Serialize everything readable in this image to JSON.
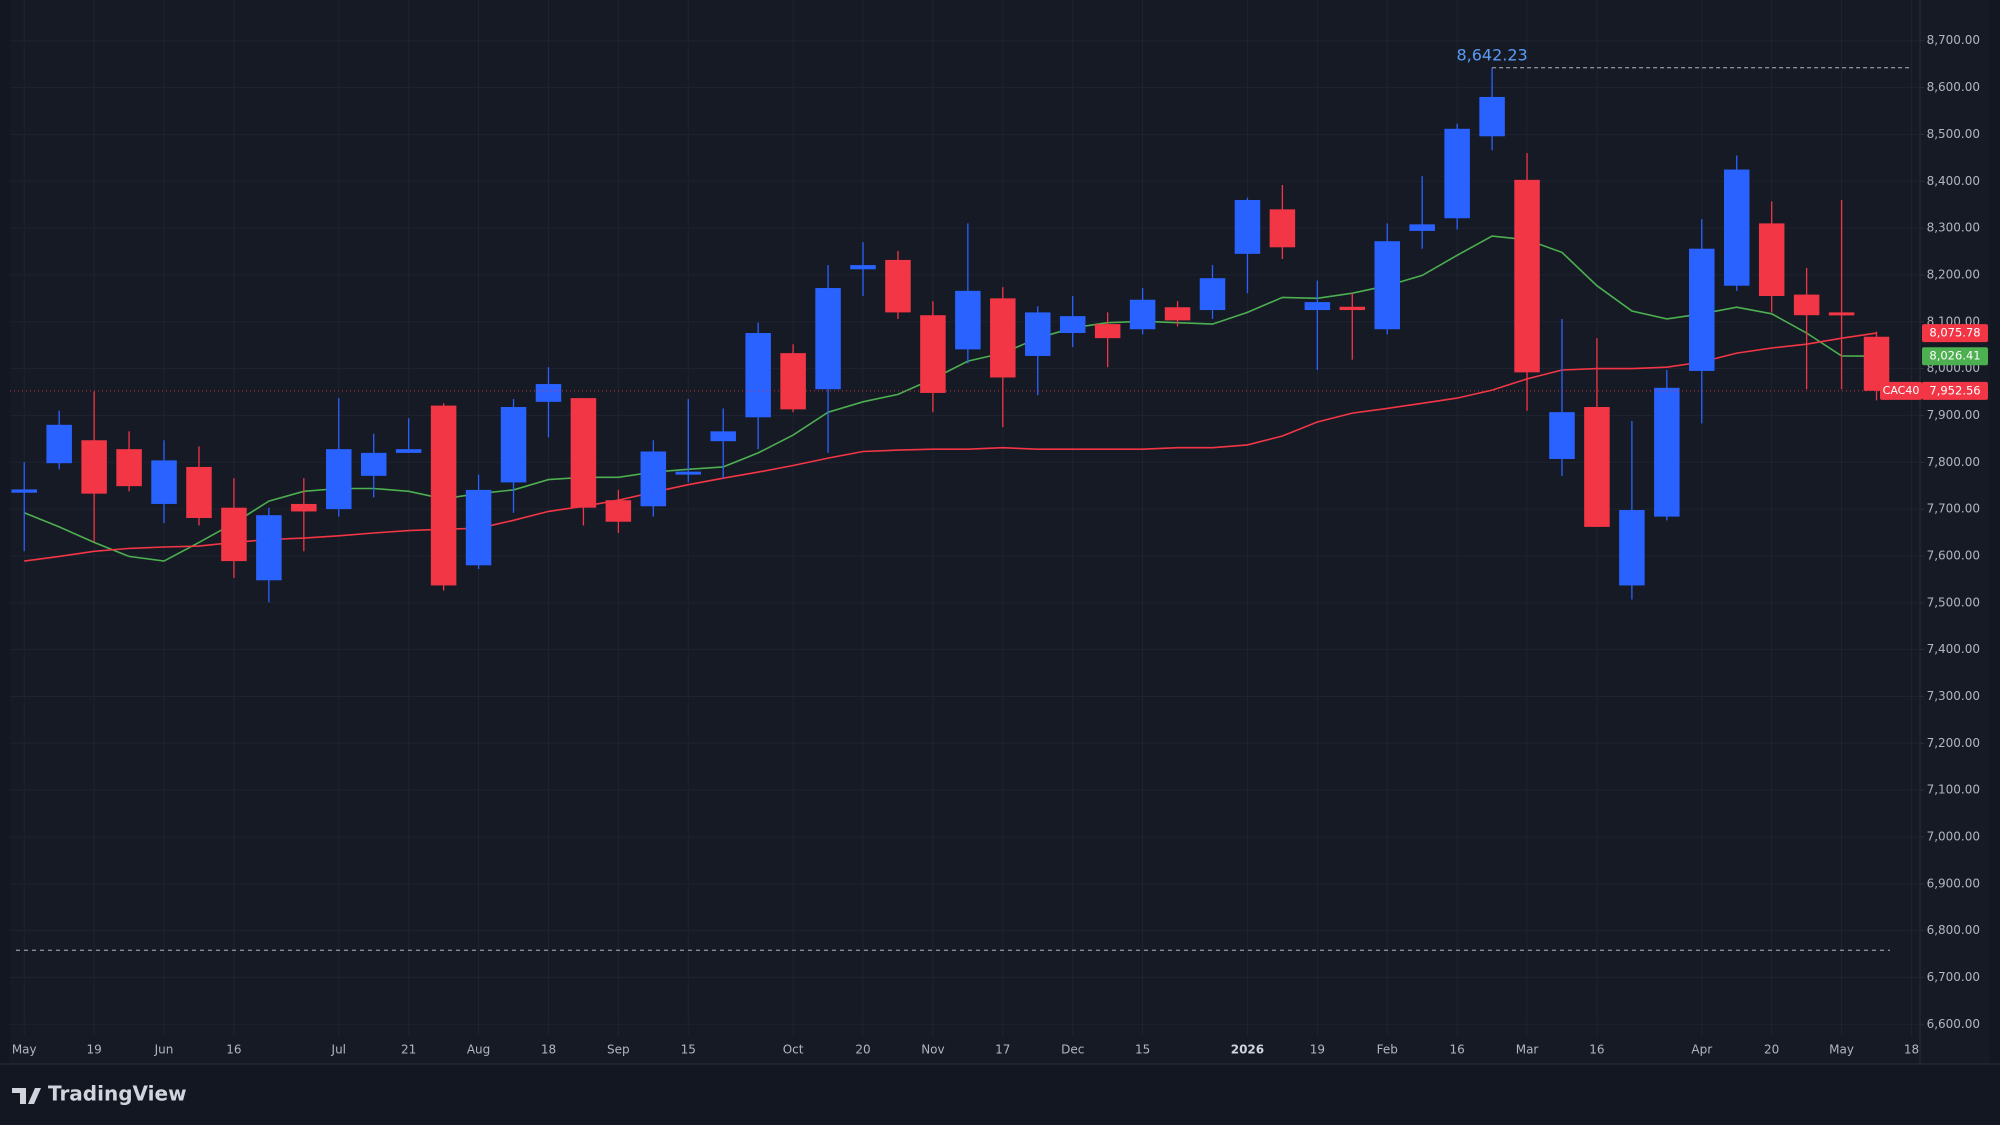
{
  "brand": "TradingView",
  "chart_data": {
    "type": "candlestick",
    "symbol": "CAC40",
    "last_label": "7,952.56",
    "high_label": "8,642.23",
    "up_color": "#2962ff",
    "down_color": "#f23645",
    "categories": [
      "May",
      null,
      "19",
      null,
      "Jun",
      null,
      "16",
      null,
      null,
      "Jul",
      null,
      "21",
      null,
      "Aug",
      null,
      "18",
      null,
      "Sep",
      null,
      "15",
      null,
      null,
      "Oct",
      null,
      "20",
      null,
      "Nov",
      null,
      "17",
      null,
      "Dec",
      null,
      "15",
      null,
      null,
      "2026",
      null,
      "19",
      null,
      "Feb",
      null,
      "16",
      null,
      "Mar",
      null,
      "16",
      null,
      null,
      "Apr",
      null,
      "20",
      null,
      "May",
      null,
      "18"
    ],
    "open": [
      7735,
      7798,
      7847,
      7828,
      7711,
      7790,
      7703,
      7548,
      7711,
      7700,
      7771,
      7820,
      7921,
      7580,
      7757,
      7929,
      7937,
      7719,
      7706,
      7774,
      7845,
      7896,
      8033,
      7956,
      8212,
      8232,
      8114,
      8041,
      8150,
      8027,
      8076,
      8095,
      8084,
      8131,
      8125,
      8245,
      8340,
      8125,
      8132,
      8084,
      8294,
      8321,
      8496,
      8403,
      7807,
      7918,
      7537,
      7684,
      7995,
      8177,
      8310,
      8158,
      8120,
      8068,
      null
    ],
    "high": [
      7800,
      7910,
      7951,
      7866,
      7847,
      7834,
      7766,
      7703,
      7766,
      7937,
      7861,
      7894,
      7926,
      7774,
      7935,
      8003,
      7937,
      7741,
      7847,
      7935,
      7915,
      8098,
      8052,
      8221,
      8270,
      8251,
      8144,
      8310,
      8174,
      8133,
      8155,
      8120,
      8172,
      8144,
      8221,
      8365,
      8392,
      8188,
      8161,
      8310,
      8411,
      8523,
      8642.23,
      8460,
      8106,
      8065,
      7888,
      7997,
      8319,
      8455,
      8357,
      8215,
      8360,
      8079,
      null
    ],
    "low": [
      7610,
      7785,
      7630,
      7738,
      7670,
      7665,
      7553,
      7501,
      7610,
      7684,
      7725,
      7820,
      7526,
      7572,
      7692,
      7853,
      7665,
      7649,
      7684,
      7757,
      7766,
      7828,
      7907,
      7820,
      8155,
      8106,
      7907,
      8011,
      7875,
      7943,
      8046,
      8003,
      8073,
      8090,
      8106,
      8161,
      8234,
      7997,
      8019,
      8073,
      8256,
      8297,
      8466,
      7910,
      7771,
      7662,
      7507,
      7676,
      7883,
      8166,
      8120,
      7956,
      7956,
      7932,
      null
    ],
    "close": [
      7742,
      7880,
      7733,
      7749,
      7804,
      7681,
      7589,
      7687,
      7695,
      7828,
      7820,
      7828,
      7537,
      7741,
      7918,
      7967,
      7703,
      7673,
      7823,
      7780,
      7866,
      8076,
      7913,
      8172,
      8221,
      8120,
      7948,
      8166,
      7981,
      8120,
      8112,
      8065,
      8147,
      8103,
      8193,
      8360,
      8259,
      8142,
      8125,
      8272,
      8308,
      8512,
      8580,
      7992,
      7907,
      7662,
      7698,
      7959,
      8256,
      8425,
      8155,
      8114,
      8117,
      7952.56,
      null
    ],
    "series": [
      {
        "color": "#4caf50",
        "last_label": "8,026.41",
        "values": [
          7692,
          7662,
          7629,
          7599,
          7589,
          7629,
          7670,
          7717,
          7738,
          7744,
          7744,
          7738,
          7722,
          7733,
          7741,
          7763,
          7768,
          7768,
          7779,
          7785,
          7790,
          7820,
          7858,
          7907,
          7929,
          7945,
          7978,
          8016,
          8033,
          8065,
          8087,
          8098,
          8101,
          8098,
          8095,
          8120,
          8152,
          8150,
          8161,
          8177,
          8199,
          8242,
          8283,
          8275,
          8248,
          8177,
          8123,
          8106,
          8117,
          8131,
          8117,
          8076,
          8027,
          8026.41,
          null
        ]
      },
      {
        "color": "#f23645",
        "last_label": "8,075.78",
        "values": [
          7589,
          7599,
          7610,
          7616,
          7619,
          7621,
          7629,
          7635,
          7638,
          7643,
          7649,
          7654,
          7657,
          7659,
          7676,
          7695,
          7706,
          7719,
          7736,
          7752,
          7766,
          7779,
          7793,
          7809,
          7823,
          7826,
          7828,
          7828,
          7831,
          7828,
          7828,
          7828,
          7828,
          7831,
          7831,
          7837,
          7856,
          7886,
          7905,
          7915,
          7926,
          7937,
          7954,
          7978,
          7997,
          8000,
          8000,
          8003,
          8014,
          8033,
          8044,
          8052,
          8065,
          8075.78,
          null
        ]
      }
    ],
    "levels": [
      6758
    ],
    "ylim": [
      6575,
      8787
    ],
    "yticks": [
      {
        "value": 6600,
        "label": "6,600.00"
      },
      {
        "value": 6700,
        "label": "6,700.00"
      },
      {
        "value": 6800,
        "label": "6,800.00"
      },
      {
        "value": 6900,
        "label": "6,900.00"
      },
      {
        "value": 7000,
        "label": "7,000.00"
      },
      {
        "value": 7100,
        "label": "7,100.00"
      },
      {
        "value": 7200,
        "label": "7,200.00"
      },
      {
        "value": 7300,
        "label": "7,300.00"
      },
      {
        "value": 7400,
        "label": "7,400.00"
      },
      {
        "value": 7500,
        "label": "7,500.00"
      },
      {
        "value": 7600,
        "label": "7,600.00"
      },
      {
        "value": 7700,
        "label": "7,700.00"
      },
      {
        "value": 7800,
        "label": "7,800.00"
      },
      {
        "value": 7900,
        "label": "7,900.00"
      },
      {
        "value": 8000,
        "label": "8,000.00"
      },
      {
        "value": 8100,
        "label": "8,100.00"
      },
      {
        "value": 8200,
        "label": "8,200.00"
      },
      {
        "value": 8300,
        "label": "8,300.00"
      },
      {
        "value": 8400,
        "label": "8,400.00"
      },
      {
        "value": 8500,
        "label": "8,500.00"
      },
      {
        "value": 8600,
        "label": "8,600.00"
      },
      {
        "value": 8700,
        "label": "8,700.00"
      }
    ],
    "grid": true
  }
}
